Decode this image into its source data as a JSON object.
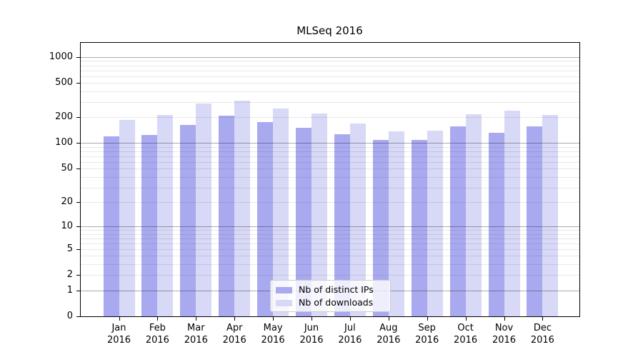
{
  "chart_data": {
    "type": "bar",
    "title": "MLSeq 2016",
    "categories": [
      "Jan",
      "Feb",
      "Mar",
      "Apr",
      "May",
      "Jun",
      "Jul",
      "Aug",
      "Sep",
      "Oct",
      "Nov",
      "Dec"
    ],
    "x_sublabel": "2016",
    "series": [
      {
        "name": "Nb of distinct IPs",
        "color": "#a9a9f0",
        "values": [
          120,
          125,
          163,
          208,
          176,
          151,
          126,
          109,
          110,
          158,
          133,
          157
        ]
      },
      {
        "name": "Nb of downloads",
        "color": "#d8d8f7",
        "values": [
          187,
          215,
          288,
          313,
          254,
          221,
          171,
          137,
          140,
          219,
          238,
          214
        ]
      }
    ],
    "y_axis": {
      "scale": "log10(1+y)",
      "ticks": [
        0,
        1,
        2,
        5,
        10,
        20,
        50,
        100,
        200,
        500,
        1000
      ],
      "range": [
        0,
        1200
      ]
    },
    "x_axis": {
      "tick_per_month": true
    },
    "legend": {
      "position": "lower center"
    },
    "grid": {
      "major_color": "#ababab",
      "minor_color": "#e8e8e8"
    }
  },
  "style_colors": {
    "spine": "#000000",
    "background": "#ffffff",
    "legend_border": "#cccccc"
  }
}
